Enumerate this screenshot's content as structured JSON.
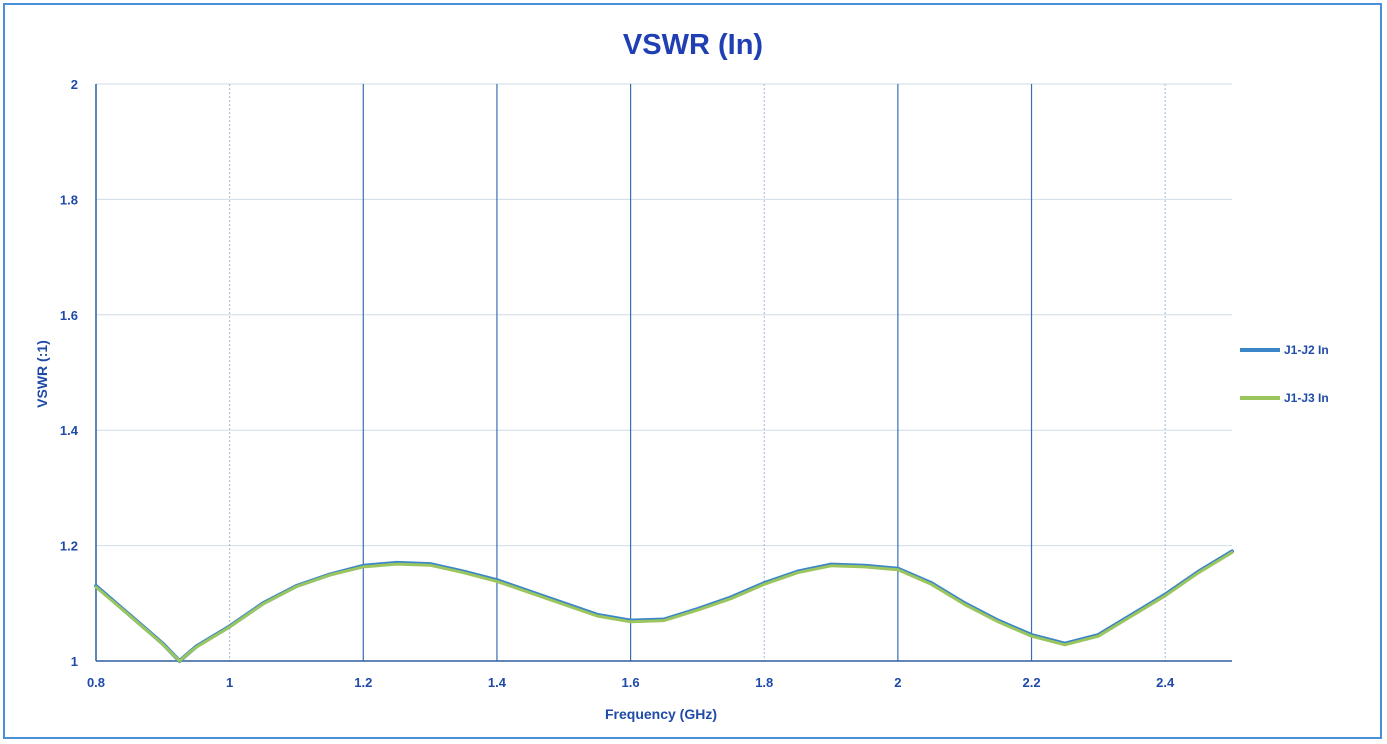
{
  "chart_data": {
    "type": "line",
    "title": "VSWR (In)",
    "xlabel": "Frequency (GHz)",
    "ylabel": "VSWR (:1)",
    "xlim": [
      0.8,
      2.5
    ],
    "ylim": [
      1,
      2
    ],
    "x_ticks": [
      0.8,
      1,
      1.2,
      1.4,
      1.6,
      1.8,
      2,
      2.2,
      2.4
    ],
    "x_tick_labels": [
      "0.8",
      "1",
      "1.2",
      "1.4",
      "1.6",
      "1.8",
      "2",
      "2.2",
      "2.4"
    ],
    "y_ticks": [
      1,
      1.2,
      1.4,
      1.6,
      1.8,
      2
    ],
    "y_tick_labels": [
      "1",
      "1.2",
      "1.4",
      "1.6",
      "1.8",
      "2"
    ],
    "grid": true,
    "legend_position": "right",
    "series": [
      {
        "name": "J1-J2 In",
        "color": "#3a86c8",
        "x": [
          0.8,
          0.85,
          0.9,
          0.925,
          0.95,
          1.0,
          1.05,
          1.1,
          1.15,
          1.2,
          1.25,
          1.3,
          1.35,
          1.4,
          1.45,
          1.5,
          1.55,
          1.6,
          1.65,
          1.7,
          1.75,
          1.8,
          1.85,
          1.9,
          1.95,
          2.0,
          2.05,
          2.1,
          2.15,
          2.2,
          2.25,
          2.3,
          2.35,
          2.4,
          2.45,
          2.5
        ],
        "values": [
          1.13,
          1.08,
          1.03,
          1.0,
          1.025,
          1.06,
          1.1,
          1.13,
          1.15,
          1.165,
          1.17,
          1.168,
          1.155,
          1.14,
          1.12,
          1.1,
          1.08,
          1.07,
          1.072,
          1.09,
          1.11,
          1.135,
          1.155,
          1.167,
          1.165,
          1.16,
          1.135,
          1.1,
          1.07,
          1.045,
          1.03,
          1.045,
          1.08,
          1.115,
          1.155,
          1.19
        ]
      },
      {
        "name": "J1-J3 In",
        "color": "#9bc55e",
        "x": [
          0.8,
          0.85,
          0.9,
          0.925,
          0.95,
          1.0,
          1.05,
          1.1,
          1.15,
          1.2,
          1.25,
          1.3,
          1.35,
          1.4,
          1.45,
          1.5,
          1.55,
          1.6,
          1.65,
          1.7,
          1.75,
          1.8,
          1.85,
          1.9,
          1.95,
          2.0,
          2.05,
          2.1,
          2.15,
          2.2,
          2.25,
          2.3,
          2.35,
          2.4,
          2.45,
          2.5
        ],
        "values": [
          1.128,
          1.079,
          1.029,
          1.0,
          1.024,
          1.059,
          1.099,
          1.129,
          1.149,
          1.163,
          1.168,
          1.166,
          1.153,
          1.138,
          1.118,
          1.098,
          1.078,
          1.068,
          1.07,
          1.088,
          1.108,
          1.133,
          1.153,
          1.165,
          1.163,
          1.158,
          1.133,
          1.098,
          1.068,
          1.043,
          1.028,
          1.043,
          1.078,
          1.113,
          1.153,
          1.188
        ]
      }
    ]
  }
}
